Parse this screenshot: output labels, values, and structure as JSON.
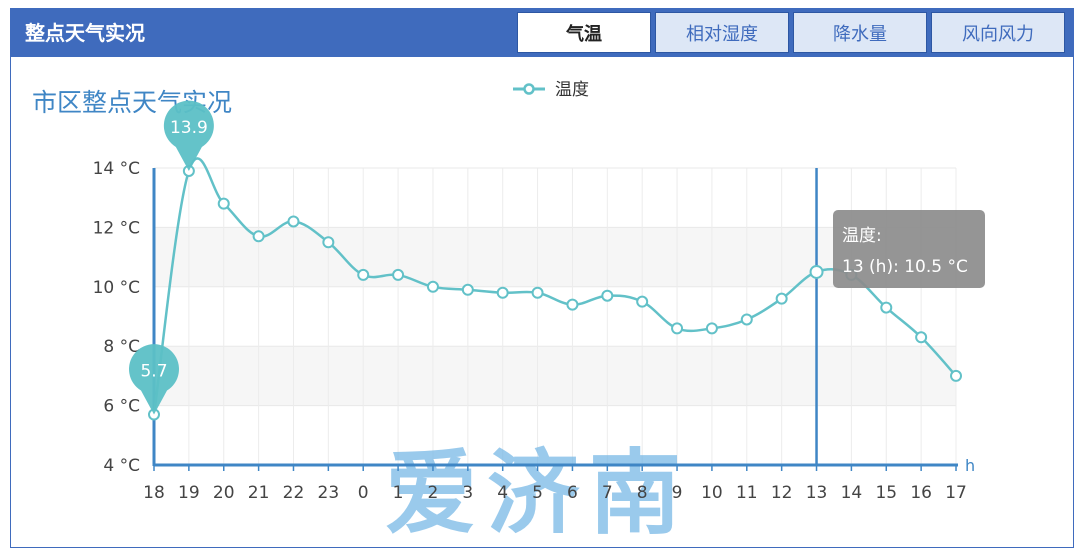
{
  "header": {
    "title": "整点天气实况",
    "tabs": [
      "气温",
      "相对湿度",
      "降水量",
      "风向风力"
    ],
    "active_tab": 0
  },
  "watermark": "爱济南",
  "chart_data": {
    "type": "line",
    "title": "市区整点天气实况",
    "legend": {
      "entries": [
        "温度"
      ],
      "placement": "top-center"
    },
    "xlabel": "h",
    "ylabel": "",
    "ytick_suffix": " °C",
    "ylim": [
      4,
      14
    ],
    "yticks": [
      4,
      6,
      8,
      10,
      12,
      14
    ],
    "grid": true,
    "categories": [
      "18",
      "19",
      "20",
      "21",
      "22",
      "23",
      "0",
      "1",
      "2",
      "3",
      "4",
      "5",
      "6",
      "7",
      "8",
      "9",
      "10",
      "11",
      "12",
      "13",
      "14",
      "15",
      "16",
      "17"
    ],
    "series": [
      {
        "name": "温度",
        "color": "#62c1c8",
        "values": [
          5.7,
          13.9,
          12.8,
          11.7,
          12.2,
          11.5,
          10.4,
          10.4,
          10.0,
          9.9,
          9.8,
          9.8,
          9.4,
          9.7,
          9.5,
          8.6,
          8.6,
          8.9,
          9.6,
          10.5,
          10.4,
          9.3,
          8.3,
          7.0
        ]
      }
    ],
    "markers": [
      {
        "type": "max",
        "value": "13.9",
        "category": "19"
      },
      {
        "type": "min",
        "value": "5.7",
        "category": "18"
      }
    ],
    "tooltip": {
      "category": "13",
      "title": "温度:",
      "text": "13 (h): 10.5 °C"
    }
  },
  "colors": {
    "header": "#3f6bbd",
    "axis": "#3f86c5",
    "title": "#3f86c5",
    "line": "#62c1c8",
    "tooltip_bg": "#8c8c8c"
  }
}
